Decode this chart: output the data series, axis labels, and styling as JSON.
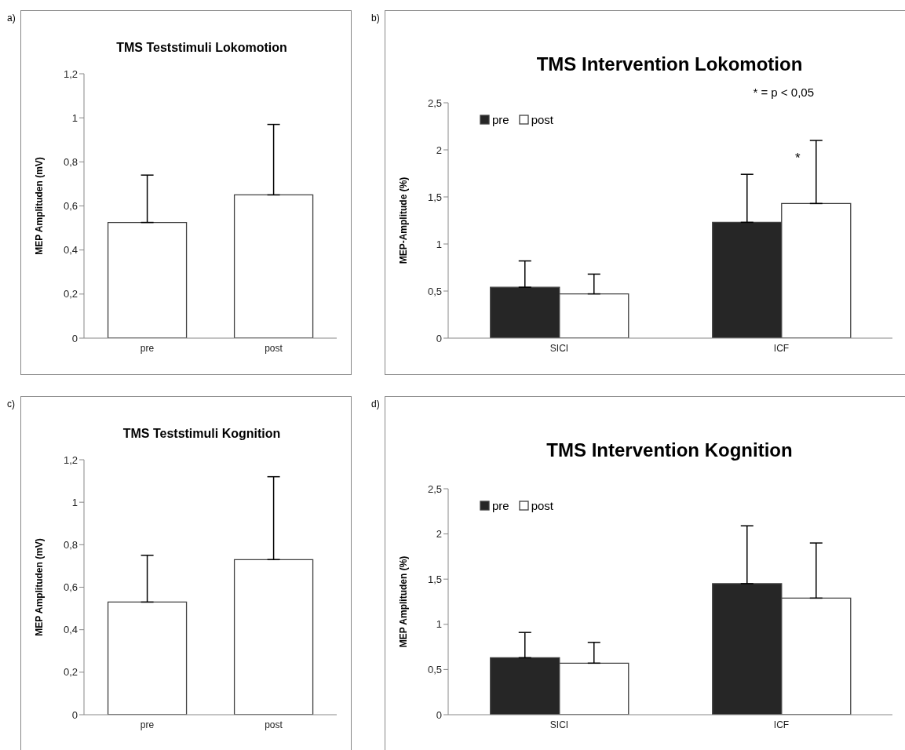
{
  "chart_data": [
    {
      "type": "bar",
      "title": "TMS Teststimuli Lokomotion",
      "ylabel": "MEP Amplituden (mV)",
      "categories": [
        "pre",
        "post"
      ],
      "values": [
        0.525,
        0.65
      ],
      "color": "#ffffff",
      "errors": [
        [
          0.525,
          0.74
        ],
        [
          0.65,
          0.97
        ]
      ],
      "ylim": [
        0,
        1.2
      ],
      "yticks": [
        0,
        {
          "value": 0.2,
          "label": "0,2"
        },
        {
          "value": 0.4,
          "label": "0,4"
        },
        {
          "value": 0.6,
          "label": "0,6"
        },
        {
          "value": 0.8,
          "label": "0,8"
        },
        1,
        {
          "value": 1.2,
          "label": "1,2"
        }
      ],
      "annotations": [
        "a)"
      ]
    },
    {
      "type": "bar",
      "title": "TMS Intervention Lokomotion",
      "ylabel": "MEP-Amplitude (%)",
      "categories": [
        "SICI",
        "ICF"
      ],
      "series": [
        {
          "name": "pre",
          "color": "#262626",
          "values": [
            0.54,
            1.23
          ],
          "errors": [
            [
              0.54,
              0.82
            ],
            [
              1.23,
              1.74
            ]
          ]
        },
        {
          "name": "post",
          "color": "#ffffff",
          "values": [
            0.47,
            1.43
          ],
          "errors": [
            [
              0.47,
              0.68
            ],
            [
              1.43,
              2.1
            ]
          ]
        }
      ],
      "ylim": [
        0,
        2.5
      ],
      "yticks": [
        0,
        {
          "value": 0.5,
          "label": "0,5"
        },
        1,
        {
          "value": 1.5,
          "label": "1,5"
        },
        2,
        {
          "value": 2.5,
          "label": "2,5"
        }
      ],
      "legend": "top left",
      "annotations": [
        "b)",
        "* = p < 0,05",
        "*"
      ]
    },
    {
      "type": "bar",
      "title": "TMS Teststimuli Kognition",
      "ylabel": "MEP Amplituden (mV)",
      "categories": [
        "pre",
        "post"
      ],
      "values": [
        0.53,
        0.73
      ],
      "color": "#ffffff",
      "errors": [
        [
          0.53,
          0.75
        ],
        [
          0.73,
          1.12
        ]
      ],
      "ylim": [
        0,
        1.2
      ],
      "yticks": [
        0,
        {
          "value": 0.2,
          "label": "0,2"
        },
        {
          "value": 0.4,
          "label": "0,4"
        },
        {
          "value": 0.6,
          "label": "0,6"
        },
        {
          "value": 0.8,
          "label": "0,8"
        },
        1,
        {
          "value": 1.2,
          "label": "1,2"
        }
      ],
      "annotations": [
        "c)"
      ]
    },
    {
      "type": "bar",
      "title": "TMS Intervention Kognition",
      "ylabel": "MEP Amplituden (%)",
      "categories": [
        "SICI",
        "ICF"
      ],
      "series": [
        {
          "name": "pre",
          "color": "#262626",
          "values": [
            0.63,
            1.45
          ],
          "errors": [
            [
              0.63,
              0.91
            ],
            [
              1.45,
              2.09
            ]
          ]
        },
        {
          "name": "post",
          "color": "#ffffff",
          "values": [
            0.57,
            1.29
          ],
          "errors": [
            [
              0.57,
              0.8
            ],
            [
              1.29,
              1.9
            ]
          ]
        }
      ],
      "ylim": [
        0,
        2.5
      ],
      "yticks": [
        0,
        {
          "value": 0.5,
          "label": "0,5"
        },
        1,
        {
          "value": 1.5,
          "label": "1,5"
        },
        2,
        {
          "value": 2.5,
          "label": "2,5"
        }
      ],
      "legend": "top left",
      "annotations": [
        "d)"
      ]
    }
  ]
}
